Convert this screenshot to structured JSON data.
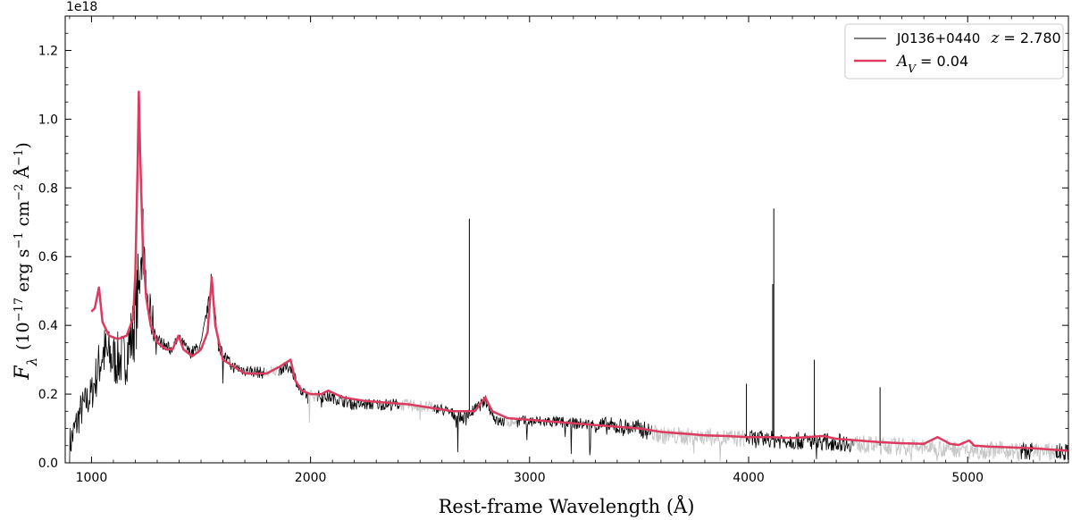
{
  "chart_data": {
    "type": "line",
    "xlabel": "Rest-frame Wavelength  (Å)",
    "ylabel": "F",
    "ylabel_sub": "λ",
    "ylabel_units": "(10",
    "ylabel_exp": "−17",
    "ylabel_units2": " erg s",
    "ylabel_exp2": "−1",
    "ylabel_units3": " cm",
    "ylabel_exp3": "−2",
    "ylabel_units4": " Å",
    "ylabel_exp4": "−1",
    "ylabel_units5": ")",
    "offset_text": "1e18",
    "xlim": [
      880,
      5460
    ],
    "ylim": [
      0,
      1.3
    ],
    "xticks": [
      1000,
      2000,
      3000,
      4000,
      5000
    ],
    "xtick_labels": [
      "1000",
      "2000",
      "3000",
      "4000",
      "5000"
    ],
    "yticks": [
      0.0,
      0.2,
      0.4,
      0.6,
      0.8,
      1.0,
      1.2
    ],
    "ytick_labels": [
      "0.0",
      "0.2",
      "0.4",
      "0.6",
      "0.8",
      "1.0",
      "1.2"
    ],
    "grid": false,
    "legend_position": "top-right",
    "legend": {
      "spectrum_label": "J0136+0440",
      "redshift_symbol": "z",
      "redshift_value": " = 2.780",
      "model_symbol": "A",
      "model_sub": "V",
      "model_value": " = 0.04"
    },
    "series": [
      {
        "role": "observed spectrum",
        "color": "#000000",
        "masked_color": "#c8c8c8",
        "anchors": [
          [
            900,
            0.05
          ],
          [
            950,
            0.15
          ],
          [
            1000,
            0.2
          ],
          [
            1050,
            0.32
          ],
          [
            1100,
            0.3
          ],
          [
            1150,
            0.3
          ],
          [
            1190,
            0.38
          ],
          [
            1216,
            0.5
          ],
          [
            1235,
            0.62
          ],
          [
            1260,
            0.45
          ],
          [
            1300,
            0.36
          ],
          [
            1360,
            0.33
          ],
          [
            1400,
            0.36
          ],
          [
            1450,
            0.32
          ],
          [
            1500,
            0.34
          ],
          [
            1549,
            0.52
          ],
          [
            1580,
            0.34
          ],
          [
            1640,
            0.28
          ],
          [
            1700,
            0.27
          ],
          [
            1800,
            0.26
          ],
          [
            1850,
            0.27
          ],
          [
            1909,
            0.28
          ],
          [
            1960,
            0.2
          ],
          [
            2100,
            0.19
          ],
          [
            2200,
            0.17
          ],
          [
            2400,
            0.17
          ],
          [
            2500,
            0.165
          ],
          [
            2600,
            0.155
          ],
          [
            2700,
            0.13
          ],
          [
            2800,
            0.18
          ],
          [
            2850,
            0.12
          ],
          [
            3000,
            0.12
          ],
          [
            3100,
            0.12
          ],
          [
            3300,
            0.11
          ],
          [
            3500,
            0.1
          ],
          [
            3600,
            0.08
          ],
          [
            3800,
            0.075
          ],
          [
            4000,
            0.07
          ],
          [
            4200,
            0.065
          ],
          [
            4400,
            0.06
          ],
          [
            4600,
            0.05
          ],
          [
            4800,
            0.045
          ],
          [
            5000,
            0.04
          ],
          [
            5200,
            0.035
          ],
          [
            5460,
            0.03
          ]
        ],
        "masked_ranges": [
          [
            1790,
            1850
          ],
          [
            1990,
            2030
          ],
          [
            2410,
            2560
          ],
          [
            2890,
            2940
          ],
          [
            3560,
            3980
          ],
          [
            4480,
            5240
          ],
          [
            5300,
            5400
          ]
        ],
        "narrow_spikes": [
          [
            2725,
            0.71
          ],
          [
            4115,
            0.74
          ],
          [
            4110,
            0.52
          ],
          [
            4300,
            0.3
          ],
          [
            4600,
            0.22
          ],
          [
            3990,
            0.23
          ],
          [
            1235,
            0.74
          ],
          [
            1546,
            0.55
          ]
        ]
      },
      {
        "role": "model fit",
        "color": "#dc3a5e",
        "points": [
          [
            1000,
            0.44
          ],
          [
            1015,
            0.45
          ],
          [
            1034,
            0.51
          ],
          [
            1050,
            0.41
          ],
          [
            1080,
            0.37
          ],
          [
            1120,
            0.36
          ],
          [
            1160,
            0.37
          ],
          [
            1190,
            0.42
          ],
          [
            1200,
            0.55
          ],
          [
            1210,
            0.85
          ],
          [
            1216,
            1.08
          ],
          [
            1222,
            0.9
          ],
          [
            1235,
            0.62
          ],
          [
            1250,
            0.48
          ],
          [
            1270,
            0.4
          ],
          [
            1300,
            0.35
          ],
          [
            1340,
            0.33
          ],
          [
            1370,
            0.33
          ],
          [
            1397,
            0.37
          ],
          [
            1420,
            0.33
          ],
          [
            1460,
            0.31
          ],
          [
            1500,
            0.33
          ],
          [
            1530,
            0.38
          ],
          [
            1549,
            0.54
          ],
          [
            1565,
            0.4
          ],
          [
            1600,
            0.3
          ],
          [
            1650,
            0.28
          ],
          [
            1700,
            0.26
          ],
          [
            1750,
            0.26
          ],
          [
            1800,
            0.26
          ],
          [
            1860,
            0.28
          ],
          [
            1909,
            0.3
          ],
          [
            1930,
            0.24
          ],
          [
            1960,
            0.21
          ],
          [
            2000,
            0.2
          ],
          [
            2050,
            0.2
          ],
          [
            2080,
            0.21
          ],
          [
            2150,
            0.19
          ],
          [
            2250,
            0.18
          ],
          [
            2350,
            0.175
          ],
          [
            2450,
            0.17
          ],
          [
            2550,
            0.16
          ],
          [
            2650,
            0.15
          ],
          [
            2750,
            0.15
          ],
          [
            2798,
            0.19
          ],
          [
            2830,
            0.15
          ],
          [
            2900,
            0.13
          ],
          [
            3000,
            0.125
          ],
          [
            3100,
            0.12
          ],
          [
            3200,
            0.115
          ],
          [
            3300,
            0.11
          ],
          [
            3400,
            0.105
          ],
          [
            3500,
            0.1
          ],
          [
            3600,
            0.09
          ],
          [
            3700,
            0.085
          ],
          [
            3800,
            0.08
          ],
          [
            3900,
            0.078
          ],
          [
            4000,
            0.075
          ],
          [
            4100,
            0.075
          ],
          [
            4200,
            0.072
          ],
          [
            4340,
            0.078
          ],
          [
            4400,
            0.07
          ],
          [
            4500,
            0.065
          ],
          [
            4600,
            0.06
          ],
          [
            4700,
            0.057
          ],
          [
            4800,
            0.055
          ],
          [
            4862,
            0.075
          ],
          [
            4920,
            0.055
          ],
          [
            4959,
            0.052
          ],
          [
            5007,
            0.065
          ],
          [
            5030,
            0.05
          ],
          [
            5100,
            0.047
          ],
          [
            5200,
            0.045
          ],
          [
            5300,
            0.042
          ],
          [
            5460,
            0.035
          ]
        ]
      }
    ]
  }
}
